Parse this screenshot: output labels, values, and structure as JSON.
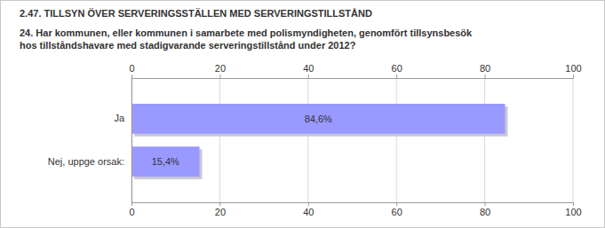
{
  "chart_data": {
    "type": "bar",
    "orientation": "horizontal",
    "title": "2.47. TILLSYN ÖVER SERVERINGSSTÄLLEN MED SERVERINGSTILLSTÅND",
    "subtitle": "24. Har kommunen, eller kommunen i samarbete med polismyndigheten, genomfört tillsynsbesök hos tillståndshavare med stadigvarande serveringstillstånd under 2012?",
    "categories": [
      "Ja",
      "Nej, uppge orsak:"
    ],
    "values": [
      84.6,
      15.4
    ],
    "value_labels": [
      "84,6%",
      "15,4%"
    ],
    "data_labels": true,
    "color": "#9999ff",
    "xlim": [
      0,
      100
    ],
    "xticks": [
      0,
      20,
      40,
      60,
      80,
      100
    ],
    "grid": true
  }
}
